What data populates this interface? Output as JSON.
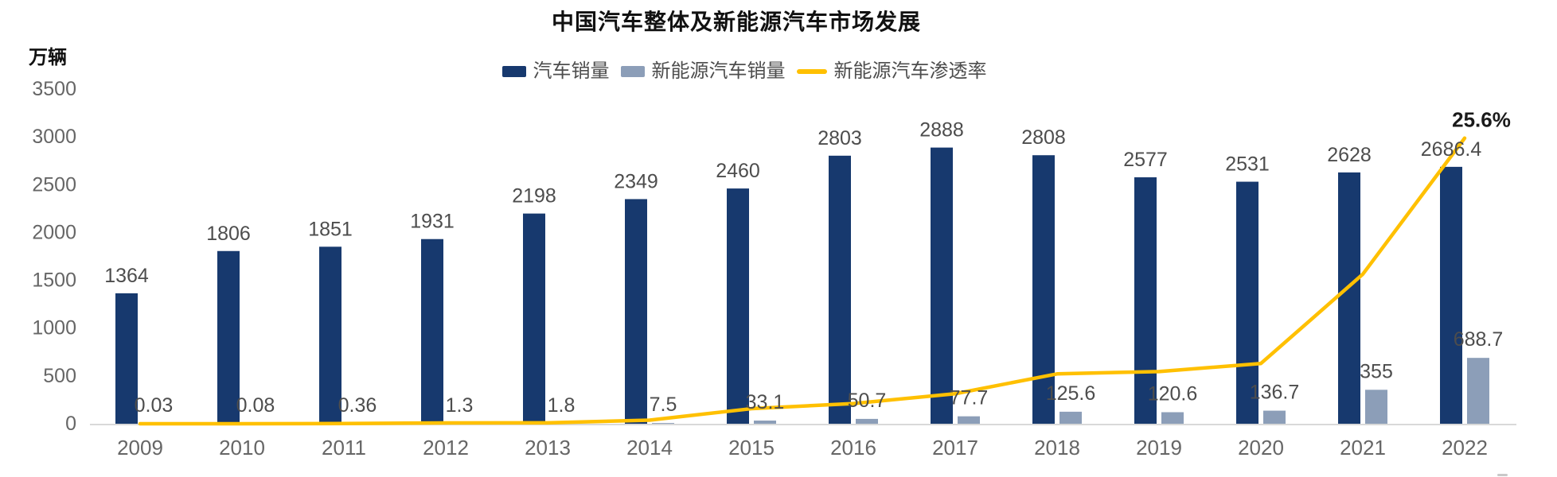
{
  "title": "中国汽车整体及新能源汽车市场发展",
  "y_axis_unit": "万辆",
  "colors": {
    "auto_bar": "#17396e",
    "nev_bar": "#8c9eb8",
    "penetration_line": "#ffc000",
    "axis_line": "#d9d9d9",
    "axis_text": "#666666",
    "value_text": "#4d4d4d",
    "annotation_text": "#1a1a1a"
  },
  "legend": [
    {
      "label": "汽车销量",
      "type": "bar",
      "color": "#17396e"
    },
    {
      "label": "新能源汽车销量",
      "type": "bar",
      "color": "#8c9eb8"
    },
    {
      "label": "新能源汽车渗透率",
      "type": "line",
      "color": "#ffc000"
    }
  ],
  "chart_data": {
    "type": "bar",
    "subtype": "grouped-bars-with-line-overlay",
    "title": "中国汽车整体及新能源汽车市场发展",
    "categories": [
      "2009",
      "2010",
      "2011",
      "2012",
      "2013",
      "2014",
      "2015",
      "2016",
      "2017",
      "2018",
      "2019",
      "2020",
      "2021",
      "2022"
    ],
    "series": [
      {
        "name": "汽车销量",
        "type": "bar",
        "color": "#17396e",
        "axis": "left",
        "values": [
          1364,
          1806,
          1851,
          1931,
          2198,
          2349,
          2460,
          2803,
          2888,
          2808,
          2577,
          2531,
          2628,
          2686.4
        ]
      },
      {
        "name": "新能源汽车销量",
        "type": "bar",
        "color": "#8c9eb8",
        "axis": "left",
        "values": [
          0.03,
          0.08,
          0.36,
          1.3,
          1.8,
          7.5,
          33.1,
          50.7,
          77.7,
          125.6,
          120.6,
          136.7,
          355,
          688.7
        ]
      },
      {
        "name": "新能源汽车渗透率",
        "type": "line",
        "color": "#ffc000",
        "axis": "right",
        "unit": "%",
        "values": [
          0.0,
          0.0,
          0.02,
          0.07,
          0.08,
          0.32,
          1.35,
          1.81,
          2.69,
          4.47,
          4.68,
          5.4,
          13.4,
          25.6
        ],
        "end_label": "25.6%"
      }
    ],
    "xlabel": "",
    "ylabel": "万辆",
    "y_ticks": [
      0,
      500,
      1000,
      1500,
      2000,
      2500,
      3000,
      3500
    ],
    "ylim": [
      0,
      3500
    ],
    "secondary_ylim_percent": [
      0,
      30
    ],
    "grid": false,
    "legend_position": "top-center",
    "bar_value_labels_visible": true
  }
}
